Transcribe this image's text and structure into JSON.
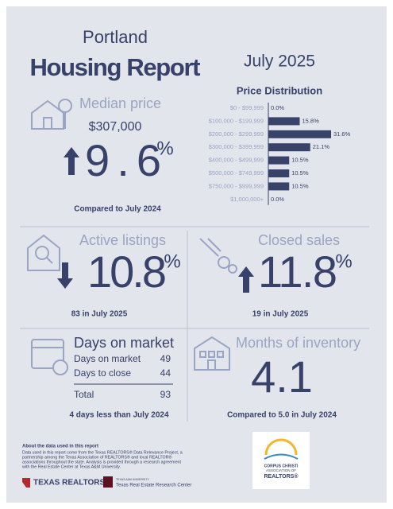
{
  "header": {
    "city": "Portland",
    "title": "Housing Report",
    "date": "July 2025"
  },
  "median_price": {
    "title": "Median price",
    "price": "$307,000",
    "change": "9.6",
    "unit": "%",
    "note": "Compared to July 2024"
  },
  "chart_data": {
    "type": "bar",
    "title": "Price Distribution",
    "categories": [
      "$0 - $99,999",
      "$100,000 - $199,999",
      "$200,000 - $299,999",
      "$300,000 - $399,999",
      "$400,000 - $499,999",
      "$500,000 - $749,999",
      "$750,000 - $999,999",
      "$1,000,000+"
    ],
    "values": [
      0.0,
      15.8,
      31.6,
      21.1,
      10.5,
      10.5,
      10.5,
      0.0
    ],
    "value_labels": [
      "0.0%",
      "15.8%",
      "31.6%",
      "21.1%",
      "10.5%",
      "10.5%",
      "10.5%",
      "0.0%"
    ],
    "color": "#39436a"
  },
  "active_listings": {
    "title": "Active listings",
    "change": "10.8",
    "unit": "%",
    "note": "83 in July 2025"
  },
  "closed_sales": {
    "title": "Closed sales",
    "change": "11.8",
    "unit": "%",
    "note": "19 in July 2025"
  },
  "days_on_market": {
    "title": "Days on market",
    "rows": [
      [
        "Days on market",
        "49"
      ],
      [
        "Days to close",
        "44"
      ]
    ],
    "total": [
      "Total",
      "93"
    ],
    "note": "4 days less than July 2024"
  },
  "months_inventory": {
    "title": "Months of inventory",
    "value": "4.1",
    "note": "Compared to 5.0 in July 2024"
  },
  "footer": {
    "about_title": "About the data used in this report",
    "about_lines": [
      "Data used in this report come from the Texas REALTORS® Data Relevance Project, a",
      "partnership among the Texas Association of REALTORS® and local REALTOR®",
      "associations throughout the state. Analysis is provided through a research agreement",
      "with the Real Estate Center at Texas A&M University."
    ],
    "logo_left": "TEXAS REALTORS",
    "logo_center_small": "TEXAS A&M UNIVERSITY",
    "logo_center": "Texas Real Estate Research Center",
    "partner_lines": [
      "CORPUS CHRISTI",
      "ASSOCIATION OF",
      "REALTORS®"
    ]
  }
}
